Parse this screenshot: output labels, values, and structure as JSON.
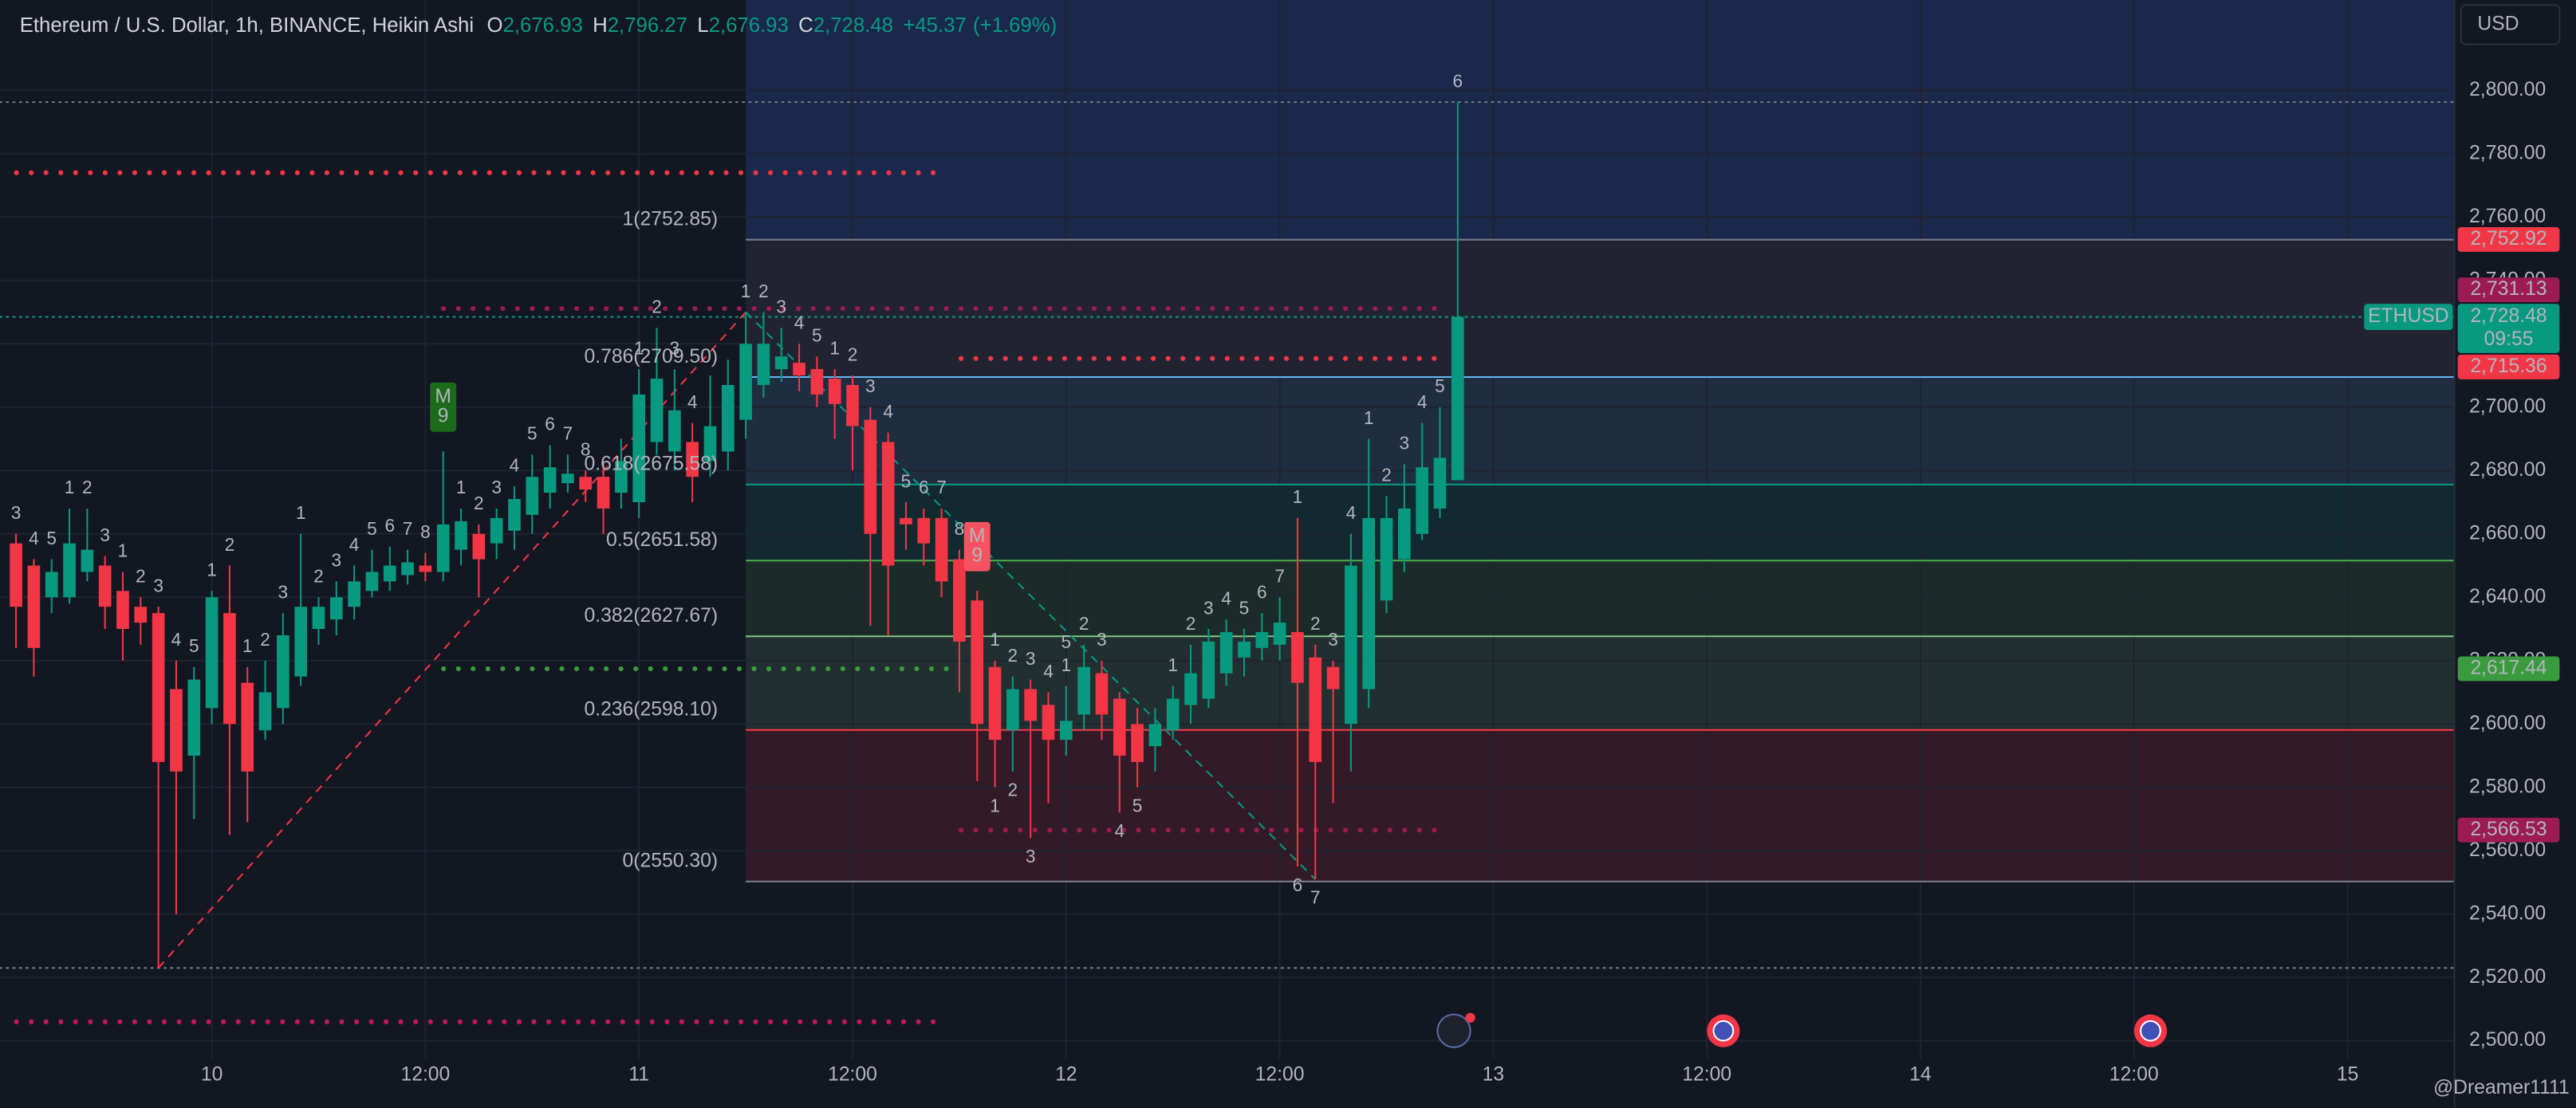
{
  "chart_data": {
    "type": "candlestick",
    "header": {
      "title": "Ethereum / U.S. Dollar, 1h, BINANCE, Heikin Ashi",
      "ohlc": [
        {
          "key": "O",
          "value": 2676.93,
          "label": "2,676.93"
        },
        {
          "key": "H",
          "value": 2796.27,
          "label": "2,796.27"
        },
        {
          "key": "L",
          "value": 2676.93,
          "label": "2,676.93"
        },
        {
          "key": "C",
          "value": 2728.48,
          "label": "2,728.48"
        }
      ],
      "change": {
        "value": 45.37,
        "label": "+45.37"
      },
      "change_pct": {
        "value": 1.69,
        "label": "(+1.69%)"
      }
    },
    "currency": "USD",
    "watermark": "@Dreamer1111",
    "up_color": "#089981",
    "down_color": "#f23645",
    "xlim": [
      -11.9,
      126
    ],
    "ylim": [
      2478.8,
      2828.5
    ],
    "xticks": [
      {
        "value": 0,
        "label": "10"
      },
      {
        "value": 12,
        "label": "12:00"
      },
      {
        "value": 24,
        "label": "11"
      },
      {
        "value": 36,
        "label": "12:00"
      },
      {
        "value": 48,
        "label": "12"
      },
      {
        "value": 60,
        "label": "12:00"
      },
      {
        "value": 72,
        "label": "13"
      },
      {
        "value": 84,
        "label": "12:00"
      },
      {
        "value": 96,
        "label": "14"
      },
      {
        "value": 108,
        "label": "12:00"
      },
      {
        "value": 120,
        "label": "15"
      }
    ],
    "yticks": [
      {
        "value": 2500,
        "label": "2,500.00"
      },
      {
        "value": 2520,
        "label": "2,520.00"
      },
      {
        "value": 2540,
        "label": "2,540.00"
      },
      {
        "value": 2560,
        "label": "2,560.00"
      },
      {
        "value": 2580,
        "label": "2,580.00"
      },
      {
        "value": 2600,
        "label": "2,600.00"
      },
      {
        "value": 2620,
        "label": "2,620.00"
      },
      {
        "value": 2640,
        "label": "2,640.00"
      },
      {
        "value": 2660,
        "label": "2,660.00"
      },
      {
        "value": 2680,
        "label": "2,680.00"
      },
      {
        "value": 2700,
        "label": "2,700.00"
      },
      {
        "value": 2720,
        "label": "2,720.00"
      },
      {
        "value": 2740,
        "label": "2,740.00"
      },
      {
        "value": 2760,
        "label": "2,760.00"
      },
      {
        "value": 2780,
        "label": "2,780.00"
      },
      {
        "value": 2800,
        "label": "2,800.00"
      }
    ],
    "grid": true,
    "x": [
      -11,
      -10,
      -9,
      -8,
      -7,
      -6,
      -5,
      -4,
      -3,
      -2,
      -1,
      0,
      1,
      2,
      3,
      4,
      5,
      6,
      7,
      8,
      9,
      10,
      11,
      12,
      13,
      14,
      15,
      16,
      17,
      18,
      19,
      20,
      21,
      22,
      23,
      24,
      25,
      26,
      27,
      28,
      29,
      30,
      31,
      32,
      33,
      34,
      35,
      36,
      37,
      38,
      39,
      40,
      41,
      42,
      43,
      44,
      45,
      46,
      47,
      48,
      49,
      50,
      51,
      52,
      53,
      54,
      55,
      56,
      57,
      58,
      59,
      60,
      61,
      62,
      63,
      64,
      65,
      66,
      67,
      68,
      69,
      70
    ],
    "open": [
      2657,
      2650,
      2640,
      2640,
      2648,
      2650,
      2642,
      2637,
      2635,
      2611,
      2590,
      2605,
      2635,
      2613,
      2598,
      2605,
      2615,
      2630,
      2633,
      2637,
      2642,
      2645,
      2647,
      2650,
      2648,
      2655,
      2660,
      2657,
      2661,
      2666,
      2673,
      2676,
      2678,
      2678,
      2673,
      2670,
      2689,
      2686,
      2689,
      2683,
      2686,
      2696,
      2707,
      2712,
      2714,
      2712,
      2709,
      2707,
      2696,
      2689,
      2665,
      2665,
      2665,
      2652,
      2639,
      2618,
      2598,
      2611,
      2606,
      2595,
      2603,
      2616,
      2608,
      2600,
      2593,
      2598,
      2606,
      2608,
      2616,
      2621,
      2624,
      2625,
      2629,
      2621,
      2618,
      2600,
      2611,
      2639,
      2652,
      2660,
      2668,
      2676.93
    ],
    "high": [
      2660,
      2652,
      2652,
      2668,
      2668,
      2653,
      2648,
      2640,
      2637,
      2620,
      2618,
      2642,
      2650,
      2618,
      2620,
      2635,
      2660,
      2640,
      2645,
      2650,
      2655,
      2656,
      2655,
      2654,
      2686,
      2668,
      2663,
      2668,
      2675,
      2685,
      2688,
      2685,
      2680,
      2683,
      2690,
      2712,
      2725,
      2712,
      2695,
      2710,
      2715,
      2730,
      2730,
      2725,
      2720,
      2716,
      2712,
      2710,
      2700,
      2692,
      2670,
      2668,
      2668,
      2655,
      2642,
      2620,
      2615,
      2614,
      2610,
      2612,
      2625,
      2620,
      2610,
      2605,
      2605,
      2612,
      2625,
      2630,
      2633,
      2630,
      2635,
      2640,
      2665,
      2625,
      2620,
      2660,
      2690,
      2672,
      2682,
      2695,
      2700,
      2796.27
    ],
    "low": [
      2624,
      2615,
      2635,
      2638,
      2645,
      2630,
      2620,
      2625,
      2523,
      2540,
      2570,
      2600,
      2565,
      2569,
      2595,
      2600,
      2612,
      2625,
      2628,
      2633,
      2640,
      2642,
      2644,
      2645,
      2645,
      2650,
      2640,
      2652,
      2655,
      2660,
      2668,
      2673,
      2670,
      2660,
      2668,
      2665,
      2685,
      2680,
      2670,
      2678,
      2680,
      2690,
      2703,
      2708,
      2705,
      2700,
      2690,
      2680,
      2631,
      2628,
      2655,
      2650,
      2640,
      2610,
      2582,
      2580,
      2585,
      2564,
      2575,
      2590,
      2598,
      2595,
      2572,
      2580,
      2585,
      2595,
      2600,
      2605,
      2612,
      2615,
      2620,
      2620,
      2555,
      2551,
      2575,
      2585,
      2605,
      2635,
      2648,
      2658,
      2665,
      2676.93
    ],
    "close": [
      2637,
      2624,
      2648,
      2657,
      2655,
      2637,
      2630,
      2632,
      2588,
      2585,
      2614,
      2640,
      2600,
      2585,
      2610,
      2628,
      2637,
      2637,
      2640,
      2645,
      2648,
      2650,
      2651,
      2648,
      2663,
      2664,
      2652,
      2665,
      2671,
      2678,
      2681,
      2679,
      2674,
      2668,
      2683,
      2704,
      2709,
      2699,
      2678,
      2694,
      2707,
      2720,
      2720,
      2716,
      2710,
      2704,
      2701,
      2694,
      2660,
      2650,
      2663,
      2657,
      2645,
      2626,
      2600,
      2595,
      2611,
      2601,
      2595,
      2601,
      2618,
      2603,
      2590,
      2588,
      2600,
      2608,
      2616,
      2626,
      2629,
      2626,
      2629,
      2632,
      2613,
      2588,
      2611,
      2650,
      2665,
      2665,
      2668,
      2681,
      2684,
      2728.48
    ],
    "td_green": [
      null,
      null,
      null,
      1,
      2,
      3,
      null,
      null,
      null,
      null,
      null,
      1,
      2,
      null,
      null,
      null,
      1,
      2,
      3,
      4,
      5,
      6,
      7,
      8,
      9,
      1,
      2,
      3,
      4,
      5,
      6,
      7,
      8,
      null,
      null,
      1,
      2,
      3,
      4,
      null,
      null,
      1,
      2,
      3,
      4,
      5,
      null,
      null,
      null,
      null,
      null,
      null,
      null,
      null,
      null,
      null,
      null,
      null,
      null,
      1,
      2,
      3,
      null,
      null,
      null,
      1,
      2,
      3,
      4,
      5,
      6,
      7,
      null,
      null,
      null,
      null,
      1,
      2,
      3,
      4,
      5,
      6
    ],
    "td_red": [
      3,
      4,
      5,
      null,
      null,
      null,
      1,
      2,
      3,
      4,
      5,
      null,
      null,
      1,
      2,
      3,
      null,
      null,
      null,
      null,
      null,
      null,
      null,
      null,
      null,
      null,
      null,
      null,
      null,
      null,
      null,
      null,
      null,
      null,
      null,
      null,
      null,
      null,
      null,
      null,
      null,
      null,
      null,
      null,
      null,
      null,
      1,
      2,
      3,
      4,
      5,
      6,
      7,
      8,
      9,
      1,
      2,
      3,
      4,
      5,
      null,
      null,
      null,
      null,
      null,
      null,
      null,
      null,
      null,
      null,
      null,
      null,
      1,
      2,
      3,
      4,
      null,
      null,
      null,
      null,
      null,
      null
    ],
    "td_red_below": [
      null,
      null,
      null,
      null,
      null,
      null,
      null,
      null,
      null,
      null,
      null,
      null,
      null,
      null,
      null,
      null,
      null,
      null,
      null,
      null,
      null,
      null,
      null,
      null,
      null,
      null,
      null,
      null,
      null,
      null,
      null,
      null,
      null,
      null,
      null,
      null,
      null,
      null,
      null,
      null,
      null,
      null,
      null,
      null,
      null,
      null,
      null,
      null,
      null,
      null,
      null,
      null,
      null,
      null,
      null,
      1,
      2,
      3,
      null,
      null,
      null,
      null,
      4,
      5,
      null,
      null,
      null,
      null,
      null,
      null,
      null,
      null,
      6,
      7,
      null,
      null,
      null,
      null,
      null,
      null,
      null,
      null
    ],
    "td_green_color": "#5cb85c",
    "td_red_color": "#f0444f",
    "badge_letter": "M",
    "fib_levels": [
      {
        "value": 2752.85,
        "label": "1(2752.85)",
        "color": "#787b86"
      },
      {
        "value": 2709.5,
        "label": "0.786(2709.50)",
        "color": "#64b5f6"
      },
      {
        "value": 2675.58,
        "label": "0.618(2675.58)",
        "color": "#089981"
      },
      {
        "value": 2651.58,
        "label": "0.5(2651.58)",
        "color": "#4caf50"
      },
      {
        "value": 2627.67,
        "label": "0.382(2627.67)",
        "color": "#81c784"
      },
      {
        "value": 2598.1,
        "label": "0.236(2598.10)",
        "color": "#f23645"
      },
      {
        "value": 2550.3,
        "label": "0(2550.30)",
        "color": "#787b86"
      }
    ],
    "levels": [
      {
        "value": 2774,
        "color": "#f23645"
      },
      {
        "value": 2506,
        "color": "#c2185b"
      }
    ],
    "price_badges": [
      {
        "value": 2752.92,
        "label": "2,752.92",
        "color": "#f23645"
      },
      {
        "value": 2731.13,
        "label": "2,731.13",
        "color": "#9c1b50"
      },
      {
        "value": 2715.36,
        "label": "2,715.36",
        "color": "#f23645"
      },
      {
        "value": 2617.44,
        "label": "2,617.44",
        "color": "#3a9b3e"
      },
      {
        "value": 2566.53,
        "label": "2,566.53",
        "color": "#9c1b50"
      }
    ],
    "current_price": {
      "symbol": "ETHUSD",
      "value": 2728.48,
      "label": "2,728.48",
      "countdown": "09:55",
      "color": "#089981"
    }
  }
}
